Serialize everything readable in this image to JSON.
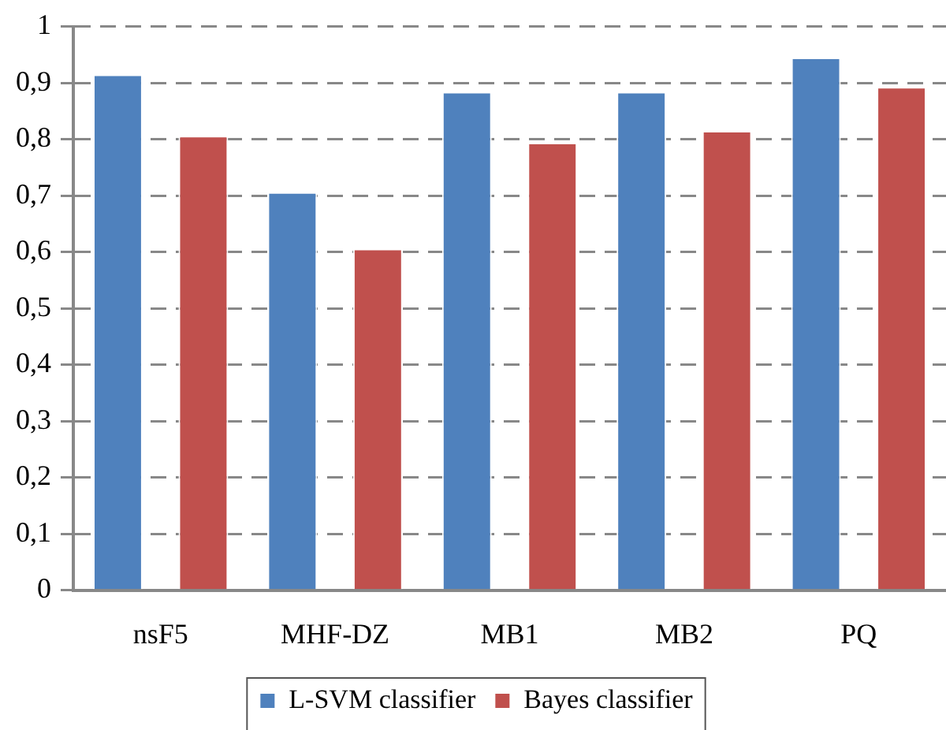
{
  "chart_data": {
    "type": "bar",
    "categories": [
      "nsF5",
      "MHF-DZ",
      "MB1",
      "MB2",
      "PQ"
    ],
    "series": [
      {
        "name": "L-SVM classifier",
        "color": "#4f81bd",
        "values": [
          0.915,
          0.706,
          0.884,
          0.884,
          0.945
        ]
      },
      {
        "name": "Bayes classifier",
        "color": "#c0504d",
        "values": [
          0.806,
          0.606,
          0.794,
          0.815,
          0.893
        ]
      }
    ],
    "ylim": [
      0,
      1
    ],
    "yticks": [
      0,
      {
        "value": 0.1,
        "label": "0,1"
      },
      {
        "value": 0.2,
        "label": "0,2"
      },
      {
        "value": 0.3,
        "label": "0,3"
      },
      {
        "value": 0.4,
        "label": "0,4"
      },
      {
        "value": 0.5,
        "label": "0,5"
      },
      {
        "value": 0.6,
        "label": "0,6"
      },
      {
        "value": 0.7,
        "label": "0,7"
      },
      {
        "value": 0.8,
        "label": "0,8"
      },
      {
        "value": 0.9,
        "label": "0,9"
      },
      1
    ],
    "grid": "y",
    "legend": "bottom"
  }
}
